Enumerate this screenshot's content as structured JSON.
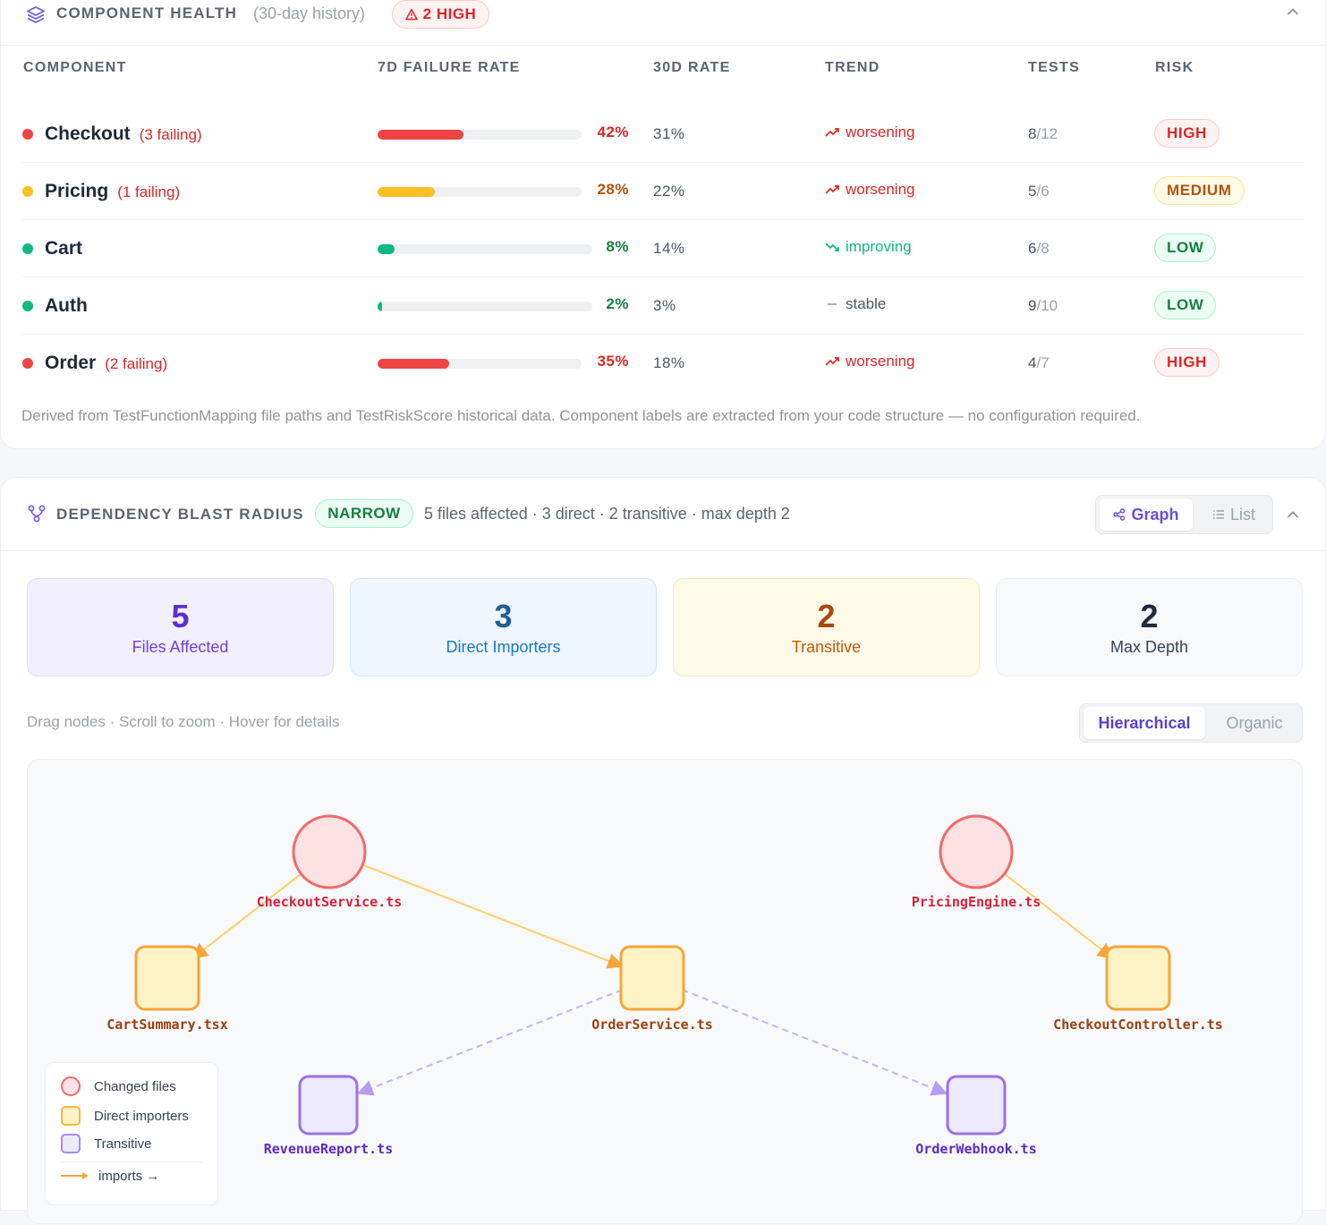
{
  "health": {
    "title": "COMPONENT HEALTH",
    "subtitle": "(30-day history)",
    "badge": "2 HIGH",
    "badge_icon": "warning-triangle-icon",
    "columns": [
      "COMPONENT",
      "7D FAILURE RATE",
      "30D RATE",
      "TREND",
      "TESTS",
      "RISK"
    ],
    "rows": [
      {
        "name": "Checkout",
        "failing": "(3 failing)",
        "rate7": "42%",
        "rate7_value": 0.42,
        "rate30": "31%",
        "trend": "worsening",
        "trend_icon": "trend-up-icon",
        "tests_pass": "8",
        "tests_total": "/12",
        "risk": "HIGH",
        "color": "#ef4444"
      },
      {
        "name": "Pricing",
        "failing": "(1 failing)",
        "rate7": "28%",
        "rate7_value": 0.28,
        "rate30": "22%",
        "trend": "worsening",
        "trend_icon": "trend-up-icon",
        "tests_pass": "5",
        "tests_total": "/6",
        "risk": "MEDIUM",
        "color": "#fbbf24"
      },
      {
        "name": "Cart",
        "failing": "",
        "rate7": "8%",
        "rate7_value": 0.08,
        "rate30": "14%",
        "trend": "improving",
        "trend_icon": "trend-down-icon",
        "tests_pass": "6",
        "tests_total": "/8",
        "risk": "LOW",
        "color": "#10b981"
      },
      {
        "name": "Auth",
        "failing": "",
        "rate7": "2%",
        "rate7_value": 0.02,
        "rate30": "3%",
        "trend": "stable",
        "trend_icon": "dash-icon",
        "tests_pass": "9",
        "tests_total": "/10",
        "risk": "LOW",
        "color": "#10b981"
      },
      {
        "name": "Order",
        "failing": "(2 failing)",
        "rate7": "35%",
        "rate7_value": 0.35,
        "rate30": "18%",
        "trend": "worsening",
        "trend_icon": "trend-up-icon",
        "tests_pass": "4",
        "tests_total": "/7",
        "risk": "HIGH",
        "color": "#ef4444"
      }
    ],
    "footnote": "Derived from TestFunctionMapping file paths and TestRiskScore historical data. Component labels are extracted from your code structure — no configuration required."
  },
  "blast": {
    "title": "DEPENDENCY BLAST RADIUS",
    "badge": "NARROW",
    "summary": "5 files affected · 3 direct · 2 transitive · max depth 2",
    "view_graph": "Graph",
    "view_list": "List",
    "stats": [
      {
        "value": "5",
        "label": "Files Affected"
      },
      {
        "value": "3",
        "label": "Direct Importers"
      },
      {
        "value": "2",
        "label": "Transitive"
      },
      {
        "value": "2",
        "label": "Max Depth"
      }
    ],
    "hint": "Drag nodes · Scroll to zoom · Hover for details",
    "layout_hierarchical": "Hierarchical",
    "layout_organic": "Organic",
    "nodes": [
      {
        "id": "CheckoutService.ts",
        "kind": "changed"
      },
      {
        "id": "PricingEngine.ts",
        "kind": "changed"
      },
      {
        "id": "CartSummary.tsx",
        "kind": "direct"
      },
      {
        "id": "OrderService.ts",
        "kind": "direct"
      },
      {
        "id": "CheckoutController.ts",
        "kind": "direct"
      },
      {
        "id": "RevenueReport.ts",
        "kind": "transitive"
      },
      {
        "id": "OrderWebhook.ts",
        "kind": "transitive"
      }
    ],
    "edges": [
      {
        "from": "CheckoutService.ts",
        "to": "CartSummary.tsx"
      },
      {
        "from": "CheckoutService.ts",
        "to": "OrderService.ts"
      },
      {
        "from": "PricingEngine.ts",
        "to": "CheckoutController.ts"
      },
      {
        "from": "OrderService.ts",
        "to": "RevenueReport.ts"
      },
      {
        "from": "OrderService.ts",
        "to": "OrderWebhook.ts"
      }
    ],
    "legend": {
      "changed": "Changed files",
      "direct": "Direct importers",
      "transitive": "Transitive",
      "imports": "imports →"
    }
  },
  "colors": {
    "high": "#ef4444",
    "medium": "#fbbf24",
    "low": "#10b981",
    "accent": "#6d4fd6",
    "changed_fill": "#fde2e4",
    "changed_stroke": "#f06b6b",
    "direct_fill": "#fef3c7",
    "direct_stroke": "#f5a63a",
    "transitive_fill": "#ede9fe",
    "transitive_stroke": "#9a72e6"
  }
}
